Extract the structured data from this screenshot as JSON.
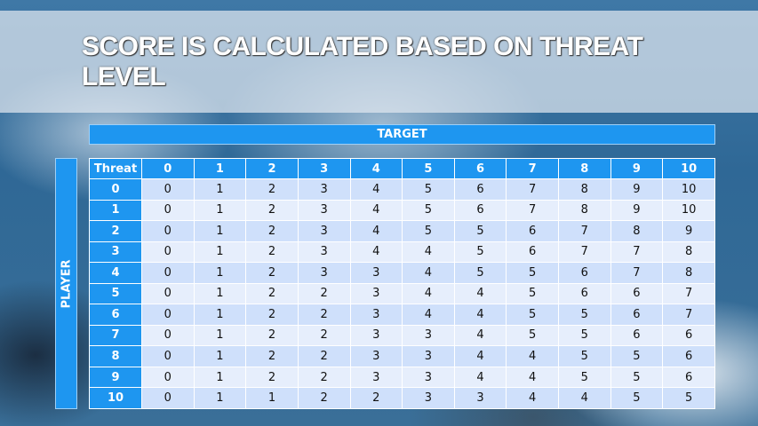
{
  "title": "SCORE IS CALCULATED BASED ON THREAT LEVEL",
  "target_label": "TARGET",
  "player_label": "PLAYER",
  "colors": {
    "header": "#1e96f0",
    "row_dark": "#cfe0fb",
    "row_light": "#e6eefc"
  },
  "table": {
    "corner": "Threat",
    "columns": [
      "0",
      "1",
      "2",
      "3",
      "4",
      "5",
      "6",
      "7",
      "8",
      "9",
      "10"
    ],
    "rows": [
      {
        "label": "0",
        "values": [
          "0",
          "1",
          "2",
          "3",
          "4",
          "5",
          "6",
          "7",
          "8",
          "9",
          "10"
        ]
      },
      {
        "label": "1",
        "values": [
          "0",
          "1",
          "2",
          "3",
          "4",
          "5",
          "6",
          "7",
          "8",
          "9",
          "10"
        ]
      },
      {
        "label": "2",
        "values": [
          "0",
          "1",
          "2",
          "3",
          "4",
          "5",
          "5",
          "6",
          "7",
          "8",
          "9"
        ]
      },
      {
        "label": "3",
        "values": [
          "0",
          "1",
          "2",
          "3",
          "4",
          "4",
          "5",
          "6",
          "7",
          "7",
          "8"
        ]
      },
      {
        "label": "4",
        "values": [
          "0",
          "1",
          "2",
          "3",
          "3",
          "4",
          "5",
          "5",
          "6",
          "7",
          "8"
        ]
      },
      {
        "label": "5",
        "values": [
          "0",
          "1",
          "2",
          "2",
          "3",
          "4",
          "4",
          "5",
          "6",
          "6",
          "7"
        ]
      },
      {
        "label": "6",
        "values": [
          "0",
          "1",
          "2",
          "2",
          "3",
          "4",
          "4",
          "5",
          "5",
          "6",
          "7"
        ]
      },
      {
        "label": "7",
        "values": [
          "0",
          "1",
          "2",
          "2",
          "3",
          "3",
          "4",
          "5",
          "5",
          "6",
          "6"
        ]
      },
      {
        "label": "8",
        "values": [
          "0",
          "1",
          "2",
          "2",
          "3",
          "3",
          "4",
          "4",
          "5",
          "5",
          "6"
        ]
      },
      {
        "label": "9",
        "values": [
          "0",
          "1",
          "2",
          "2",
          "3",
          "3",
          "4",
          "4",
          "5",
          "5",
          "6"
        ]
      },
      {
        "label": "10",
        "values": [
          "0",
          "1",
          "1",
          "2",
          "2",
          "3",
          "3",
          "4",
          "4",
          "5",
          "5"
        ]
      }
    ]
  }
}
